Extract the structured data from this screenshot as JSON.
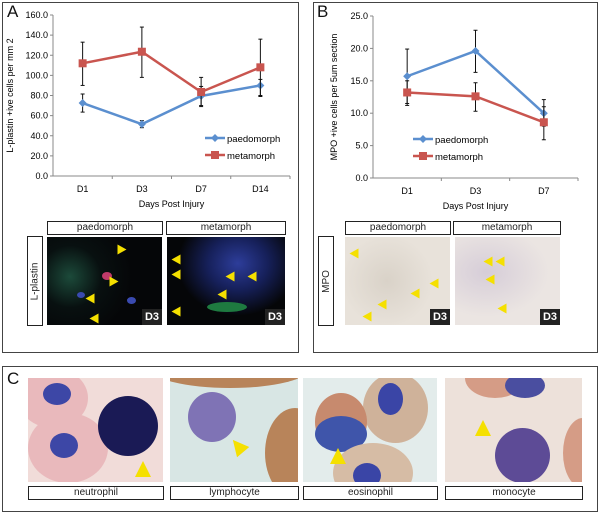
{
  "panels": {
    "a": "A",
    "b": "B",
    "c": "C"
  },
  "chart_data": [
    {
      "type": "line",
      "categories": [
        "D1",
        "D3",
        "D7",
        "D14"
      ],
      "xlabel": "Days Post Injury",
      "ylabel": "L-plastin +ive cells per mm 2",
      "ylim": [
        0,
        160
      ],
      "yticks": [
        "0.0",
        "20.0",
        "40.0",
        "60.0",
        "80.0",
        "100.0",
        "120.0",
        "140.0",
        "160.0"
      ],
      "legend_placement": "right",
      "series": [
        {
          "name": "paedomorph",
          "color": "#5b8fcf",
          "marker": "diamond",
          "values": [
            72.5,
            51.5,
            79.5,
            90
          ],
          "err_low": [
            63.5,
            48,
            69,
            80
          ],
          "err_high": [
            81.5,
            55,
            89,
            96
          ]
        },
        {
          "name": "metamorph",
          "color": "#c9554f",
          "marker": "square",
          "values": [
            112,
            123.5,
            83.5,
            108
          ],
          "err_low": [
            90,
            98,
            70,
            79
          ],
          "err_high": [
            133,
            148,
            98,
            136
          ]
        }
      ]
    },
    {
      "type": "line",
      "categories": [
        "D1",
        "D3",
        "D7"
      ],
      "xlabel": "Days Post Injury",
      "ylabel": "MPO +ive cells per 5um section",
      "ylim": [
        0,
        25
      ],
      "yticks": [
        "0.0",
        "5.0",
        "10.0",
        "15.0",
        "20.0",
        "25.0"
      ],
      "legend_placement": "bottom-left",
      "series": [
        {
          "name": "paedomorph",
          "color": "#5b8fcf",
          "marker": "diamond",
          "values": [
            15.7,
            19.6,
            10.0
          ],
          "err_low": [
            11.5,
            16.3,
            8.0
          ],
          "err_high": [
            19.9,
            22.8,
            12.1
          ]
        },
        {
          "name": "metamorph",
          "color": "#c9554f",
          "marker": "square",
          "values": [
            13.2,
            12.6,
            8.6
          ],
          "err_low": [
            11.2,
            10.3,
            5.9
          ],
          "err_high": [
            15.0,
            14.7,
            11.0
          ]
        }
      ]
    }
  ],
  "micro_a": {
    "stain": "L-plastin",
    "cols": [
      "paedomorph",
      "metamorph"
    ],
    "day": "D3"
  },
  "micro_b": {
    "stain": "MPO",
    "cols": [
      "paedomorph",
      "metamorph"
    ],
    "day": "D3"
  },
  "cells": [
    "neutrophil",
    "lymphocyte",
    "eosinophil",
    "monocyte"
  ]
}
